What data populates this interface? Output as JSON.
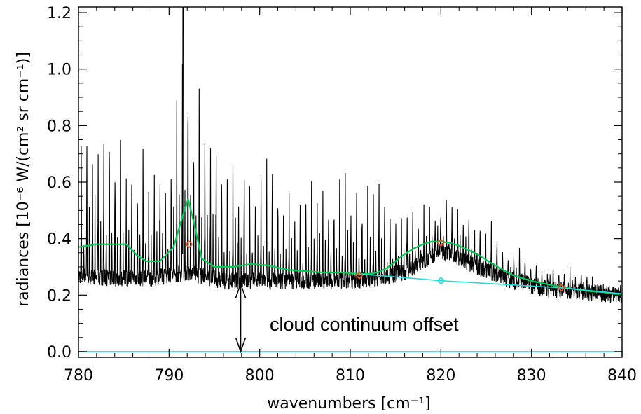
{
  "chart_data": {
    "type": "line",
    "xlabel": "wavenumbers [cm⁻¹]",
    "ylabel": "radiances [10⁻⁶ W/(cm² sr cm⁻¹)]",
    "xlim": [
      780,
      840
    ],
    "ylim": [
      -0.02,
      1.22
    ],
    "x_ticks": [
      780,
      790,
      800,
      810,
      820,
      830,
      840
    ],
    "y_ticks": [
      0.0,
      0.2,
      0.4,
      0.6,
      0.8,
      1.0,
      1.2
    ],
    "x_tick_labels": [
      "780",
      "790",
      "800",
      "810",
      "820",
      "830",
      "840"
    ],
    "y_tick_labels": [
      "0.0",
      "0.2",
      "0.4",
      "0.6",
      "0.8",
      "1.0",
      "1.2"
    ],
    "grid": false,
    "annotations": [
      {
        "text": "cloud continuum offset",
        "x": 800.5,
        "y": 0.1
      }
    ],
    "offset_arrow": {
      "x": 797.9,
      "y_from": 0.0,
      "y_to": 0.24
    },
    "series": [
      {
        "style": "spectrum",
        "color": "#000000",
        "baseline_profile": {
          "x": [
            780,
            784,
            788,
            792,
            796,
            800,
            806,
            811,
            816,
            820,
            824,
            828,
            832,
            836,
            840
          ],
          "y": [
            0.27,
            0.26,
            0.26,
            0.28,
            0.25,
            0.25,
            0.25,
            0.25,
            0.28,
            0.36,
            0.3,
            0.25,
            0.22,
            0.21,
            0.2
          ]
        },
        "peak_envelope": {
          "x": [
            780,
            784,
            788,
            790,
            792,
            796,
            800,
            806,
            811,
            816,
            820,
            824,
            830,
            836,
            840
          ],
          "y": [
            0.84,
            0.86,
            0.76,
            0.8,
            1.22,
            0.73,
            0.7,
            0.68,
            0.63,
            0.56,
            0.57,
            0.49,
            0.33,
            0.27,
            0.23
          ]
        }
      },
      {
        "style": "smooth-fit",
        "color": "#00cc55",
        "x": [
          780,
          782,
          784,
          785.3,
          786.5,
          787.5,
          789,
          790.5,
          791.5,
          792.1,
          792.8,
          793.6,
          795,
          797,
          799,
          801,
          803,
          805,
          807,
          809,
          811,
          812,
          813,
          814,
          815,
          816,
          817,
          818,
          819,
          820,
          821,
          822,
          823,
          824,
          825,
          826,
          828,
          830,
          833,
          836,
          838,
          840
        ],
        "y": [
          0.37,
          0.38,
          0.38,
          0.38,
          0.34,
          0.32,
          0.32,
          0.37,
          0.48,
          0.54,
          0.45,
          0.33,
          0.3,
          0.3,
          0.31,
          0.305,
          0.29,
          0.285,
          0.28,
          0.28,
          0.275,
          0.275,
          0.28,
          0.295,
          0.32,
          0.345,
          0.365,
          0.38,
          0.39,
          0.39,
          0.385,
          0.375,
          0.36,
          0.345,
          0.325,
          0.305,
          0.27,
          0.25,
          0.23,
          0.215,
          0.21,
          0.2
        ]
      },
      {
        "style": "continuum",
        "color": "#22dddd",
        "x": [
          811,
          820,
          833.3,
          840
        ],
        "y": [
          0.275,
          0.251,
          0.226,
          0.205
        ]
      },
      {
        "style": "zero-line",
        "color": "#22dddd",
        "x": [
          780,
          840
        ],
        "y": [
          0.0,
          0.0
        ]
      }
    ],
    "markers": [
      {
        "x": 792.2,
        "y": 0.38,
        "color": "#ee5522"
      },
      {
        "x": 811.0,
        "y": 0.27,
        "color": "#ee5522"
      },
      {
        "x": 820.0,
        "y": 0.385,
        "color": "#ee5522"
      },
      {
        "x": 833.3,
        "y": 0.226,
        "color": "#ee5522"
      },
      {
        "x": 820.0,
        "y": 0.251,
        "color": "#22dddd"
      }
    ]
  }
}
